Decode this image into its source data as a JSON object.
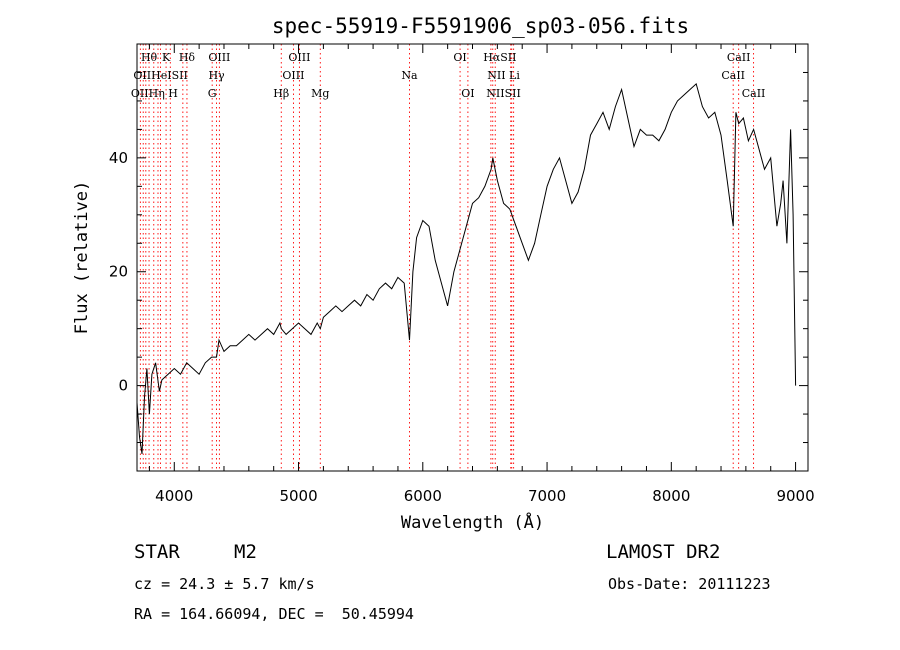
{
  "chart_data": {
    "type": "line",
    "title": "spec-55919-F5591906_sp03-056.fits",
    "xlabel": "Wavelength (Å)",
    "ylabel": "Flux (relative)",
    "xlim": [
      3700,
      9100
    ],
    "ylim": [
      -15,
      60
    ],
    "xticks": [
      4000,
      5000,
      6000,
      7000,
      8000,
      9000
    ],
    "yticks": [
      0,
      20,
      40
    ],
    "grid": false,
    "series": [
      {
        "x": [
          3700,
          3720,
          3740,
          3760,
          3780,
          3800,
          3820,
          3850,
          3880,
          3900,
          3950,
          4000,
          4050,
          4100,
          4150,
          4200,
          4250,
          4300,
          4340,
          4360,
          4400,
          4450,
          4500,
          4550,
          4600,
          4650,
          4700,
          4750,
          4800,
          4850,
          4861,
          4900,
          4950,
          5000,
          5050,
          5100,
          5150,
          5175,
          5200,
          5250,
          5300,
          5350,
          5400,
          5450,
          5500,
          5550,
          5600,
          5650,
          5700,
          5750,
          5800,
          5850,
          5893,
          5920,
          5950,
          6000,
          6050,
          6100,
          6150,
          6200,
          6250,
          6300,
          6350,
          6400,
          6450,
          6500,
          6550,
          6563,
          6600,
          6650,
          6700,
          6750,
          6800,
          6850,
          6900,
          6950,
          7000,
          7050,
          7100,
          7150,
          7200,
          7250,
          7300,
          7350,
          7400,
          7450,
          7500,
          7550,
          7600,
          7650,
          7700,
          7750,
          7800,
          7850,
          7900,
          7950,
          8000,
          8050,
          8100,
          8150,
          8200,
          8250,
          8300,
          8350,
          8400,
          8450,
          8498,
          8520,
          8542,
          8580,
          8620,
          8662,
          8700,
          8750,
          8800,
          8850,
          8880,
          8900,
          8930,
          8960,
          8980,
          9000
        ],
        "y": [
          -3,
          -9,
          -12,
          -2,
          3,
          -5,
          2,
          4,
          -1,
          1,
          2,
          3,
          2,
          4,
          3,
          2,
          4,
          5,
          5,
          8,
          6,
          7,
          7,
          8,
          9,
          8,
          9,
          10,
          9,
          11,
          10,
          9,
          10,
          11,
          10,
          9,
          11,
          10,
          12,
          13,
          14,
          13,
          14,
          15,
          14,
          16,
          15,
          17,
          18,
          17,
          19,
          18,
          8,
          20,
          26,
          29,
          28,
          22,
          18,
          14,
          20,
          24,
          28,
          32,
          33,
          35,
          38,
          40,
          36,
          32,
          31,
          28,
          25,
          22,
          25,
          30,
          35,
          38,
          40,
          36,
          32,
          34,
          38,
          44,
          46,
          48,
          45,
          49,
          52,
          47,
          42,
          45,
          44,
          44,
          43,
          45,
          48,
          50,
          51,
          52,
          53,
          49,
          47,
          48,
          44,
          36,
          28,
          48,
          46,
          47,
          43,
          45,
          42,
          38,
          40,
          28,
          32,
          36,
          25,
          45,
          30,
          0
        ]
      }
    ],
    "annotations": {
      "top_labels": [
        {
          "text": "Hθ",
          "x": 3797,
          "row": 1
        },
        {
          "text": "K",
          "x": 3934,
          "row": 1
        },
        {
          "text": "Hδ",
          "x": 4102,
          "row": 1
        },
        {
          "text": "OIII",
          "x": 4363,
          "row": 1
        },
        {
          "text": "OIII",
          "x": 5007,
          "row": 1
        },
        {
          "text": "OI",
          "x": 6300,
          "row": 1
        },
        {
          "text": "HαSII",
          "x": 6620,
          "row": 1
        },
        {
          "text": "CaII",
          "x": 8542,
          "row": 1
        },
        {
          "text": "OIIHeISII",
          "x": 3890,
          "row": 2
        },
        {
          "text": "Hγ",
          "x": 4340,
          "row": 2
        },
        {
          "text": "OIII",
          "x": 4959,
          "row": 2
        },
        {
          "text": "Na",
          "x": 5893,
          "row": 2
        },
        {
          "text": "NII Li",
          "x": 6650,
          "row": 2
        },
        {
          "text": "CaII",
          "x": 8498,
          "row": 2
        },
        {
          "text": "OIIHη H",
          "x": 3840,
          "row": 3
        },
        {
          "text": "G",
          "x": 4305,
          "row": 3
        },
        {
          "text": "Hβ",
          "x": 4861,
          "row": 3
        },
        {
          "text": "Mg",
          "x": 5175,
          "row": 3
        },
        {
          "text": "OI",
          "x": 6363,
          "row": 3
        },
        {
          "text": "NIISII",
          "x": 6650,
          "row": 3
        },
        {
          "text": "CaII",
          "x": 8662,
          "row": 3
        }
      ],
      "line_positions": [
        3727,
        3750,
        3771,
        3797,
        3835,
        3869,
        3889,
        3934,
        3968,
        4069,
        4102,
        4305,
        4340,
        4363,
        4861,
        4959,
        5007,
        5175,
        5893,
        6300,
        6363,
        6548,
        6563,
        6583,
        6708,
        6716,
        6731,
        8498,
        8542,
        8662
      ]
    },
    "colors": {
      "spectrum": "#000000",
      "line_markers": "#ff0000",
      "frame": "#000000"
    }
  },
  "info": {
    "class": "STAR",
    "subclass": "M2",
    "survey": "LAMOST DR2",
    "cz": "cz = 24.3 ± 5.7 km/s",
    "obs_date": "Obs-Date: 20111223",
    "radec": "RA = 164.66094, DEC =  50.45994"
  }
}
